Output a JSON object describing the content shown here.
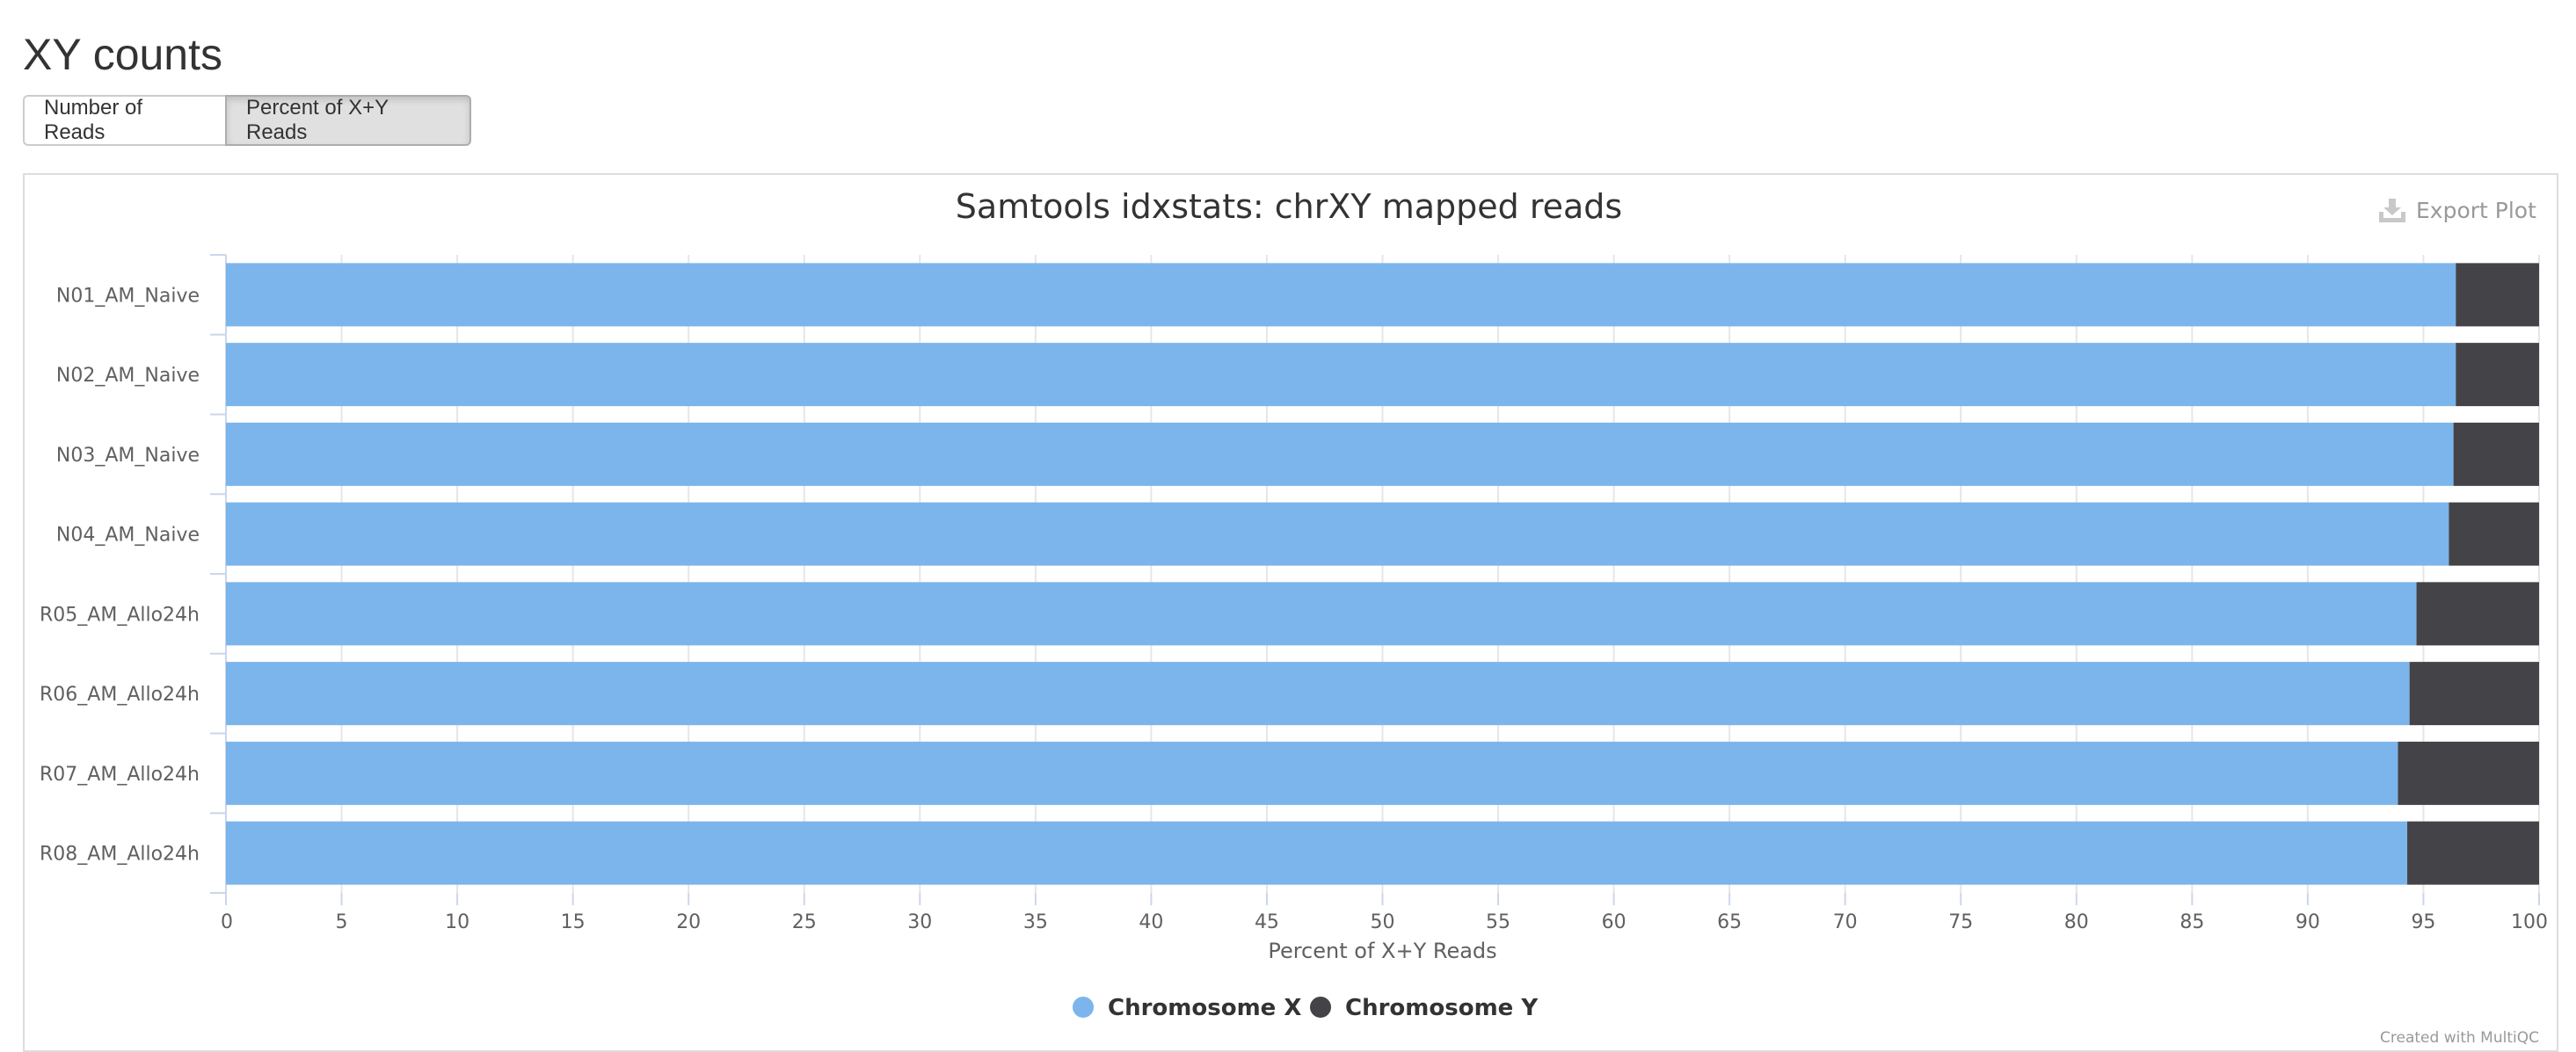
{
  "section": {
    "title": "XY counts"
  },
  "toggle": {
    "buttons": [
      {
        "label": "Number of Reads",
        "active": false
      },
      {
        "label": "Percent of X+Y Reads",
        "active": true
      }
    ]
  },
  "export": {
    "label": "Export Plot",
    "icon": "download-icon"
  },
  "credit": "Created with MultiQC",
  "chart_data": {
    "type": "bar",
    "orientation": "horizontal",
    "stacking": "percent",
    "title": "Samtools idxstats: chrXY mapped reads",
    "xlabel": "Percent of X+Y Reads",
    "ylabel": "",
    "xlim": [
      0,
      100
    ],
    "ticks": [
      0,
      5,
      10,
      15,
      20,
      25,
      30,
      35,
      40,
      45,
      50,
      55,
      60,
      65,
      70,
      75,
      80,
      85,
      90,
      95,
      100
    ],
    "categories": [
      "N01_AM_Naive",
      "N02_AM_Naive",
      "N03_AM_Naive",
      "N04_AM_Naive",
      "R05_AM_Allo24h",
      "R06_AM_Allo24h",
      "R07_AM_Allo24h",
      "R08_AM_Allo24h"
    ],
    "series": [
      {
        "name": "Chromosome X",
        "color": "#7cb5ec",
        "values": [
          96.4,
          96.4,
          96.3,
          96.1,
          94.7,
          94.4,
          93.9,
          94.3
        ]
      },
      {
        "name": "Chromosome Y",
        "color": "#434348",
        "values": [
          3.6,
          3.6,
          3.7,
          3.9,
          5.3,
          5.6,
          6.1,
          5.7
        ]
      }
    ],
    "grid": true,
    "legend_position": "bottom-center"
  }
}
